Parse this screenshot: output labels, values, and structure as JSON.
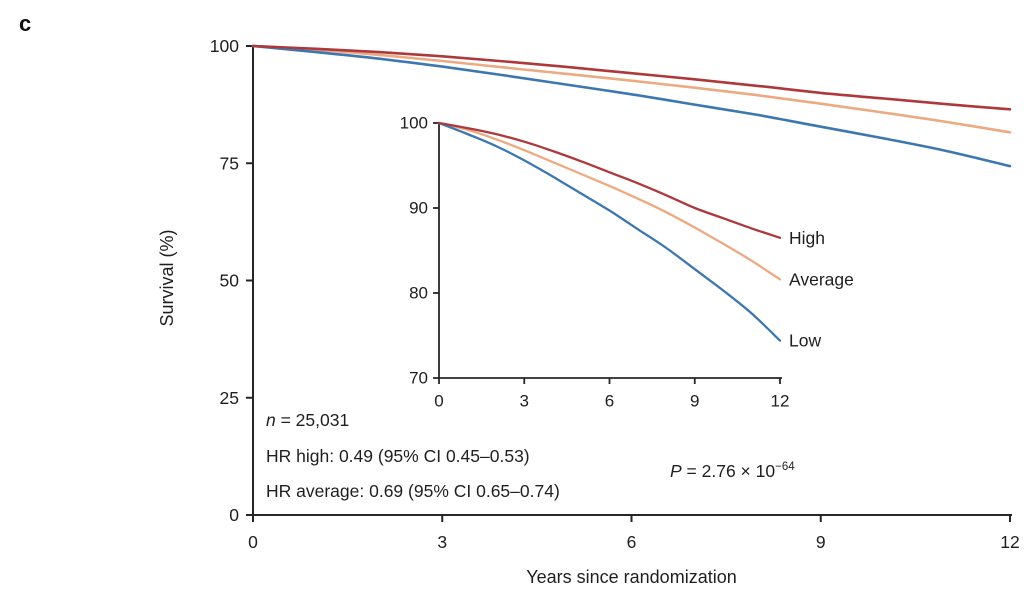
{
  "panel_label": "c",
  "annotations": {
    "n_italic": "n",
    "n_rest": " = 25,031",
    "hr_high": "HR high: 0.49 (95% CI 0.45–0.53)",
    "hr_average": "HR average: 0.69 (95% CI 0.65–0.74)",
    "p_italic": "P",
    "p_rest": " = 2.76 × 10",
    "p_exponent": "−64"
  },
  "chart_data": {
    "type": "line",
    "title": "",
    "xlabel": "Years since randomization",
    "ylabel": "Survival (%)",
    "n": 25031,
    "hr_high": 0.49,
    "hr_high_ci": [
      0.45,
      0.53
    ],
    "hr_average": 0.69,
    "hr_average_ci": [
      0.65,
      0.74
    ],
    "p_value": "2.76e-64",
    "x": [
      0,
      1,
      2,
      3,
      4,
      5,
      6,
      7,
      8,
      9,
      10,
      11,
      12
    ],
    "series": [
      {
        "name": "High",
        "color": "#ad393c",
        "values": [
          100,
          99.4,
          98.7,
          97.8,
          96.7,
          95.5,
          94.2,
          92.9,
          91.5,
          90.0,
          88.8,
          87.6,
          86.5
        ]
      },
      {
        "name": "Average",
        "color": "#ecaa83",
        "values": [
          100,
          99.2,
          98.1,
          96.8,
          95.4,
          94.0,
          92.6,
          91.1,
          89.5,
          87.7,
          85.8,
          83.8,
          81.6
        ]
      },
      {
        "name": "Low",
        "color": "#3d77b0",
        "values": [
          100,
          98.7,
          97.3,
          95.6,
          93.7,
          91.7,
          89.7,
          87.5,
          85.3,
          82.8,
          80.3,
          77.6,
          74.4
        ]
      }
    ],
    "main_axis": {
      "xlim": [
        0,
        12
      ],
      "ylim": [
        0,
        100
      ],
      "xticks": [
        0,
        3,
        6,
        9,
        12
      ],
      "yticks": [
        0,
        25,
        50,
        75,
        100
      ]
    },
    "inset_axis": {
      "xlim": [
        0,
        12
      ],
      "ylim": [
        70,
        100
      ],
      "xticks": [
        0,
        3,
        6,
        9,
        12
      ],
      "yticks": [
        70,
        80,
        90,
        100
      ]
    },
    "legend_position": "right-of-inset-curves",
    "grid": false
  }
}
